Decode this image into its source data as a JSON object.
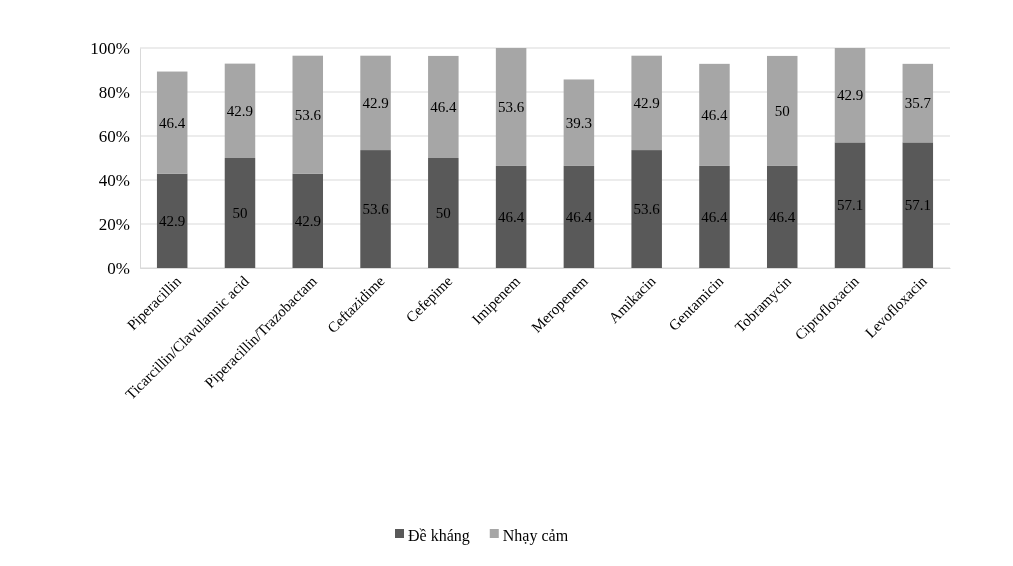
{
  "chart_data": {
    "type": "bar",
    "stacked": true,
    "categories": [
      "Piperacillin",
      "Ticarcillin/Clavulannic acid",
      "Piperacillin/Trazobactam",
      "Ceftazidime",
      "Cefepime",
      "Imipenem",
      "Meropenem",
      "Amikacin",
      "Gentamicin",
      "Tobramycin",
      "Ciprofloxacin",
      "Levofloxacin"
    ],
    "series": [
      {
        "name": "Đề kháng",
        "color": "#595959",
        "values": [
          42.9,
          50,
          42.9,
          53.6,
          50,
          46.4,
          46.4,
          53.6,
          46.4,
          46.4,
          57.1,
          57.1
        ]
      },
      {
        "name": "Nhạy cảm",
        "color": "#a6a6a6",
        "values": [
          46.4,
          42.9,
          53.6,
          42.9,
          46.4,
          53.6,
          39.3,
          42.9,
          46.4,
          50,
          42.9,
          35.7
        ]
      }
    ],
    "ylim": [
      0,
      100
    ],
    "yticks": [
      {
        "value": 0,
        "label": "0%"
      },
      {
        "value": 20,
        "label": "20%"
      },
      {
        "value": 40,
        "label": "40%"
      },
      {
        "value": 60,
        "label": "60%"
      },
      {
        "value": 80,
        "label": "80%"
      },
      {
        "value": 100,
        "label": "100%"
      }
    ],
    "grid": "y",
    "legend": "bottom",
    "data_labels": true
  }
}
